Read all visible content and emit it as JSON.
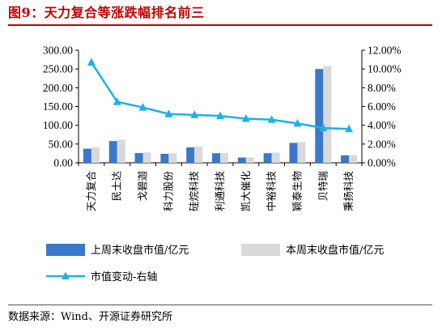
{
  "header": {
    "title": "图9：天力复合等涨跌幅排名前三"
  },
  "footer": {
    "source": "数据来源：Wind、开源证券研究所"
  },
  "chart_data": {
    "type": "bar",
    "categories": [
      "天力复合",
      "民士达",
      "戈碧迦",
      "科力股份",
      "硅烷科技",
      "利通科技",
      "凯大催化",
      "中裕科技",
      "颖泰生物",
      "贝特瑞",
      "秉扬科技"
    ],
    "series": [
      {
        "name": "上周末收盘市值/亿元",
        "type": "bar",
        "axis": "left",
        "color": "#3a78c9",
        "values": [
          37.5,
          58.0,
          26.0,
          24.0,
          41.0,
          25.5,
          14.0,
          25.5,
          53.0,
          250.0,
          20.0
        ]
      },
      {
        "name": "本周末收盘市值/亿元",
        "type": "bar",
        "axis": "left",
        "color": "#d9d9d9",
        "values": [
          41.5,
          62.0,
          27.5,
          25.0,
          43.0,
          26.5,
          14.5,
          27.0,
          55.0,
          258.0,
          20.5
        ]
      },
      {
        "name": "市值变动-右轴",
        "type": "line",
        "axis": "right",
        "color": "#1fb0e8",
        "values": [
          10.7,
          6.5,
          5.9,
          5.2,
          5.1,
          5.0,
          4.7,
          4.6,
          4.2,
          3.7,
          3.6
        ]
      }
    ],
    "y_left": {
      "ticks": [
        "0.00",
        "50.00",
        "100.00",
        "150.00",
        "200.00",
        "250.00",
        "300.00"
      ],
      "ylim": [
        0,
        300
      ]
    },
    "y_right": {
      "ticks": [
        "0.00%",
        "2.00%",
        "4.00%",
        "6.00%",
        "8.00%",
        "10.00%",
        "12.00%"
      ],
      "ylim": [
        0,
        12
      ]
    },
    "grid": false,
    "legend_position": "bottom"
  }
}
